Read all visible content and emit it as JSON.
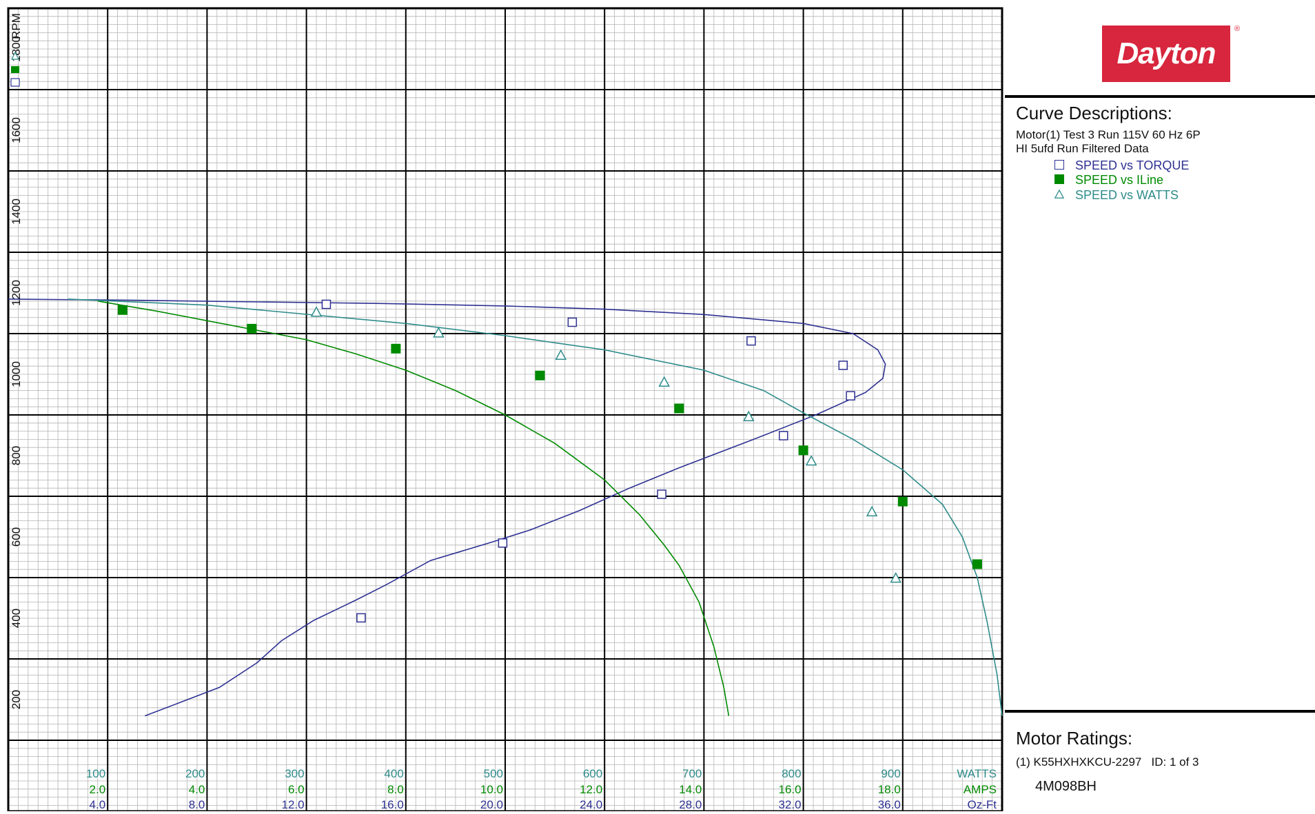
{
  "brand": {
    "logo_text": "Dayton",
    "registered": "®"
  },
  "legend": {
    "title": "Curve Descriptions:",
    "lines": [
      "Motor(1) Test 3 Run 115V 60 Hz 6P",
      "HI 5ufd Run Filtered Data"
    ],
    "items": [
      {
        "label": "SPEED vs TORQUE",
        "color": "#2e3192",
        "marker": "open-square"
      },
      {
        "label": "SPEED vs ILine",
        "color": "#008a00",
        "marker": "filled-square"
      },
      {
        "label": "SPEED vs WATTS",
        "color": "#2e8b8b",
        "marker": "open-triangle"
      }
    ]
  },
  "ratings": {
    "title": "Motor Ratings:",
    "line": "(1) K55HXHXKCU-2297   ID: 1 of 3",
    "model": "4M098BH"
  },
  "chart_data": {
    "type": "line",
    "y_axis": {
      "label": "RPM",
      "range": [
        0,
        1900
      ],
      "ticks": [
        200,
        400,
        600,
        800,
        1000,
        1200,
        1400,
        1600,
        1800
      ]
    },
    "x_axes": [
      {
        "label": "WATTS",
        "range": [
          0,
          1000
        ],
        "ticks": [
          "100",
          "200",
          "300",
          "400",
          "500",
          "600",
          "700",
          "800",
          "900"
        ],
        "color": "#2e8b8b",
        "marker": "open-triangle"
      },
      {
        "label": "AMPS",
        "range": [
          0,
          20
        ],
        "ticks": [
          "2.0",
          "4.0",
          "6.0",
          "8.0",
          "10.0",
          "12.0",
          "14.0",
          "16.0",
          "18.0"
        ],
        "color": "#008a00",
        "marker": "filled-square"
      },
      {
        "label": "Oz-Ft",
        "range": [
          0,
          40
        ],
        "ticks": [
          "4.0",
          "8.0",
          "12.0",
          "16.0",
          "20.0",
          "24.0",
          "28.0",
          "32.0",
          "36.0"
        ],
        "color": "#2e3192",
        "marker": "open-square"
      }
    ],
    "grid": true,
    "series": [
      {
        "name": "SPEED vs TORQUE",
        "x_unit": "Oz-Ft",
        "color": "#2e3192",
        "marker": "open-square",
        "curve": [
          [
            0.0,
            1185
          ],
          [
            5,
            1182
          ],
          [
            10,
            1178
          ],
          [
            15,
            1174
          ],
          [
            20,
            1168
          ],
          [
            24,
            1160
          ],
          [
            28,
            1147
          ],
          [
            32,
            1125
          ],
          [
            34,
            1100
          ],
          [
            35,
            1060
          ],
          [
            35.3,
            1025
          ],
          [
            35.2,
            990
          ],
          [
            34.5,
            955
          ],
          [
            32.5,
            900
          ],
          [
            30,
            840
          ],
          [
            27,
            770
          ],
          [
            25,
            720
          ],
          [
            23,
            665
          ],
          [
            21,
            617
          ],
          [
            19.5,
            588
          ],
          [
            17,
            542
          ],
          [
            15.2,
            482
          ],
          [
            14,
            445
          ],
          [
            12.3,
            395
          ],
          [
            11,
            345
          ],
          [
            10,
            290
          ],
          [
            8.5,
            230
          ],
          [
            7,
            195
          ],
          [
            5.5,
            160
          ]
        ],
        "markers": [
          [
            12.8,
            1172
          ],
          [
            22.7,
            1128
          ],
          [
            29.9,
            1082
          ],
          [
            33.6,
            1022
          ],
          [
            33.9,
            947
          ],
          [
            31.2,
            849
          ],
          [
            26.3,
            705
          ],
          [
            19.9,
            585
          ],
          [
            14.2,
            401
          ]
        ]
      },
      {
        "name": "SPEED vs ILine",
        "x_unit": "AMPS",
        "color": "#008a00",
        "marker": "filled-square",
        "curve": [
          [
            1.8,
            1180
          ],
          [
            3,
            1155
          ],
          [
            4.5,
            1120
          ],
          [
            6,
            1085
          ],
          [
            7,
            1050
          ],
          [
            8,
            1010
          ],
          [
            9,
            960
          ],
          [
            10,
            900
          ],
          [
            11,
            830
          ],
          [
            12,
            740
          ],
          [
            12.7,
            655
          ],
          [
            13.2,
            580
          ],
          [
            13.5,
            530
          ],
          [
            13.9,
            440
          ],
          [
            14.2,
            330
          ],
          [
            14.4,
            230
          ],
          [
            14.5,
            160
          ]
        ],
        "markers": [
          [
            2.3,
            1158
          ],
          [
            4.9,
            1112
          ],
          [
            7.8,
            1063
          ],
          [
            10.7,
            997
          ],
          [
            13.5,
            916
          ],
          [
            16.0,
            813
          ],
          [
            18.0,
            687
          ],
          [
            19.5,
            533
          ]
        ]
      },
      {
        "name": "SPEED vs WATTS",
        "x_unit": "WATTS",
        "color": "#2e8b8b",
        "marker": "open-triangle",
        "curve": [
          [
            60,
            1185
          ],
          [
            200,
            1170
          ],
          [
            400,
            1125
          ],
          [
            500,
            1095
          ],
          [
            600,
            1060
          ],
          [
            700,
            1010
          ],
          [
            760,
            960
          ],
          [
            800,
            905
          ],
          [
            850,
            840
          ],
          [
            900,
            765
          ],
          [
            940,
            680
          ],
          [
            960,
            600
          ],
          [
            975,
            500
          ],
          [
            985,
            390
          ],
          [
            995,
            260
          ],
          [
            1000,
            160
          ]
        ],
        "markers": [
          [
            310,
            1153
          ],
          [
            433,
            1102
          ],
          [
            556,
            1047
          ],
          [
            660,
            981
          ],
          [
            745,
            896
          ],
          [
            808,
            787
          ],
          [
            869,
            662
          ],
          [
            893,
            499
          ]
        ]
      }
    ]
  }
}
